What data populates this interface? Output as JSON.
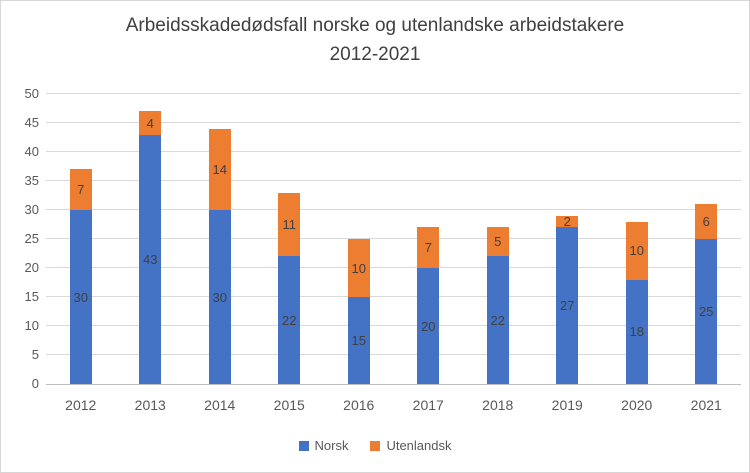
{
  "title": {
    "line1": "Arbeidsskadedødsfall norske og utenlandske arbeidstakere",
    "line2": "2012-2021"
  },
  "chart_data": {
    "type": "bar",
    "stacked": true,
    "title": "Arbeidsskadedødsfall norske og utenlandske arbeidstakere 2012-2021",
    "categories": [
      "2012",
      "2013",
      "2014",
      "2015",
      "2016",
      "2017",
      "2018",
      "2019",
      "2020",
      "2021"
    ],
    "series": [
      {
        "name": "Norsk",
        "color": "#4472C4",
        "values": [
          30,
          43,
          30,
          22,
          15,
          20,
          22,
          27,
          18,
          25
        ]
      },
      {
        "name": "Utenlandsk",
        "color": "#ED7D31",
        "values": [
          7,
          4,
          14,
          11,
          10,
          7,
          5,
          2,
          10,
          6
        ]
      }
    ],
    "totals": [
      37,
      47,
      44,
      33,
      25,
      27,
      27,
      29,
      28,
      31
    ],
    "xlabel": "",
    "ylabel": "",
    "ylim": [
      0,
      50
    ],
    "yticks": [
      0,
      5,
      10,
      15,
      20,
      25,
      30,
      35,
      40,
      45,
      50
    ],
    "grid": true,
    "data_labels": true,
    "legend_position": "bottom"
  },
  "colors": {
    "norsk": "#4472C4",
    "utenlandsk": "#ED7D31",
    "gridline": "#D9D9D9",
    "axis_text": "#595959",
    "data_label": "#404040",
    "title_text": "#404040",
    "frame_border": "#D6D6D6"
  }
}
